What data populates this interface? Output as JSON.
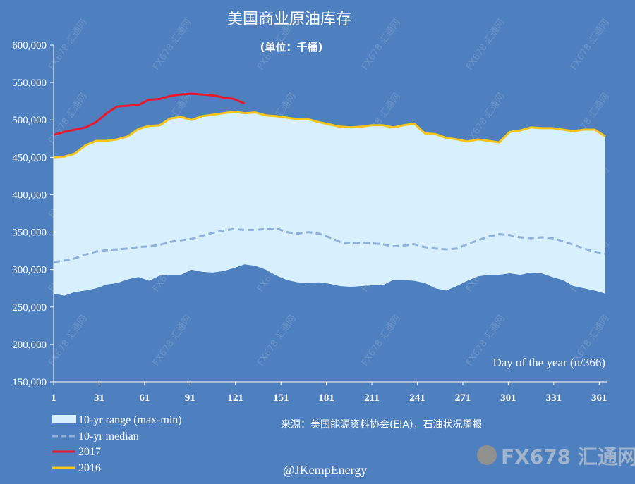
{
  "chart_data": {
    "type": "area",
    "title": "美国商业原油库存",
    "subtitle": "(单位：千桶)",
    "xlabel": "Day of the year (n/366)",
    "ylabel": "",
    "ylim": [
      150000,
      600000
    ],
    "xlim": [
      1,
      366
    ],
    "y_ticks": [
      150000,
      200000,
      250000,
      300000,
      350000,
      400000,
      450000,
      500000,
      550000,
      600000
    ],
    "y_tick_labels": [
      "150,000",
      "200,000",
      "250,000",
      "300,000",
      "350,000",
      "400,000",
      "450,000",
      "500,000",
      "550,000",
      "600,000"
    ],
    "x_ticks": [
      1,
      31,
      61,
      91,
      121,
      151,
      181,
      211,
      241,
      271,
      301,
      331,
      361
    ],
    "x_tick_labels": [
      "1",
      "31",
      "61",
      "91",
      "121",
      "151",
      "181",
      "211",
      "241",
      "271",
      "301",
      "331",
      "361"
    ],
    "grid": false,
    "legend_position": "bottom-left",
    "source": "来源：美国能源资料协会(EIA)，石油状况周报",
    "credit": "@JKempEnergy",
    "watermark": "FX678 汇通网",
    "x": [
      1,
      8,
      15,
      22,
      29,
      36,
      43,
      50,
      57,
      64,
      71,
      78,
      85,
      92,
      99,
      106,
      113,
      120,
      127,
      134,
      141,
      148,
      155,
      162,
      169,
      176,
      183,
      190,
      197,
      204,
      211,
      218,
      225,
      232,
      239,
      246,
      253,
      260,
      267,
      274,
      281,
      288,
      295,
      302,
      309,
      316,
      323,
      330,
      337,
      344,
      351,
      358,
      365
    ],
    "series": [
      {
        "name": "10-yr range (max-min)",
        "kind": "range",
        "color": "#d7f0fc",
        "max": [
          450000,
          450000,
          455000,
          465000,
          472000,
          472000,
          474000,
          478000,
          488000,
          492000,
          493000,
          502000,
          504000,
          500000,
          505000,
          507000,
          509000,
          511000,
          509000,
          510000,
          506000,
          505000,
          503000,
          501000,
          501000,
          497000,
          494000,
          491000,
          490000,
          491000,
          493000,
          493000,
          490000,
          493000,
          495000,
          482000,
          481000,
          476000,
          474000,
          471000,
          474000,
          472000,
          470000,
          484000,
          486000,
          490000,
          489000,
          489000,
          487000,
          485000,
          487000,
          487000,
          478000
        ],
        "min": [
          268000,
          265000,
          270000,
          272000,
          275000,
          280000,
          282000,
          287000,
          290000,
          285000,
          292000,
          293000,
          293000,
          300000,
          297000,
          296000,
          298000,
          302000,
          307000,
          305000,
          300000,
          292000,
          286000,
          283000,
          282000,
          283000,
          281000,
          278000,
          277000,
          278000,
          279000,
          279000,
          286000,
          286000,
          285000,
          282000,
          275000,
          272000,
          278000,
          285000,
          291000,
          293000,
          293000,
          295000,
          293000,
          296000,
          295000,
          290000,
          286000,
          278000,
          275000,
          272000,
          268000
        ]
      },
      {
        "name": "10-yr median",
        "kind": "dashed-line",
        "color": "#8fb0d8",
        "values": [
          310000,
          312000,
          315000,
          320000,
          324000,
          326000,
          327000,
          328000,
          330000,
          331000,
          333000,
          337000,
          339000,
          341000,
          345000,
          349000,
          352000,
          354000,
          353000,
          353000,
          354000,
          355000,
          350000,
          348000,
          350000,
          348000,
          343000,
          337000,
          335000,
          336000,
          335000,
          334000,
          331000,
          332000,
          334000,
          330000,
          328000,
          327000,
          328000,
          334000,
          339000,
          344000,
          347000,
          346000,
          343000,
          342000,
          343000,
          342000,
          338000,
          333000,
          328000,
          324000,
          321000
        ]
      },
      {
        "name": "2017",
        "kind": "line",
        "color": "#e8192c",
        "x": [
          1,
          8,
          15,
          22,
          29,
          36,
          43,
          50,
          57,
          64,
          71,
          78,
          85,
          92,
          99,
          106,
          113,
          120,
          127
        ],
        "values": [
          480000,
          484000,
          487000,
          490000,
          497000,
          509000,
          518000,
          519000,
          520000,
          527000,
          528000,
          532000,
          534000,
          535000,
          534000,
          533000,
          530000,
          528000,
          522000
        ]
      },
      {
        "name": "2016",
        "kind": "line",
        "color": "#f5c518",
        "values": [
          450000,
          451000,
          455000,
          466000,
          472000,
          472000,
          474000,
          478000,
          488000,
          492000,
          493000,
          502000,
          504000,
          500000,
          505000,
          507000,
          509000,
          511000,
          509000,
          510000,
          506000,
          505000,
          503000,
          501000,
          501000,
          497000,
          494000,
          491000,
          490000,
          491000,
          493000,
          493000,
          490000,
          493000,
          495000,
          482000,
          481000,
          476000,
          474000,
          471000,
          474000,
          472000,
          470000,
          484000,
          486000,
          490000,
          489000,
          489000,
          487000,
          485000,
          487000,
          487000,
          478000
        ]
      }
    ]
  },
  "colors": {
    "background": "#4e7fbe",
    "text": "#ffffff",
    "axis": "#ffffff"
  }
}
